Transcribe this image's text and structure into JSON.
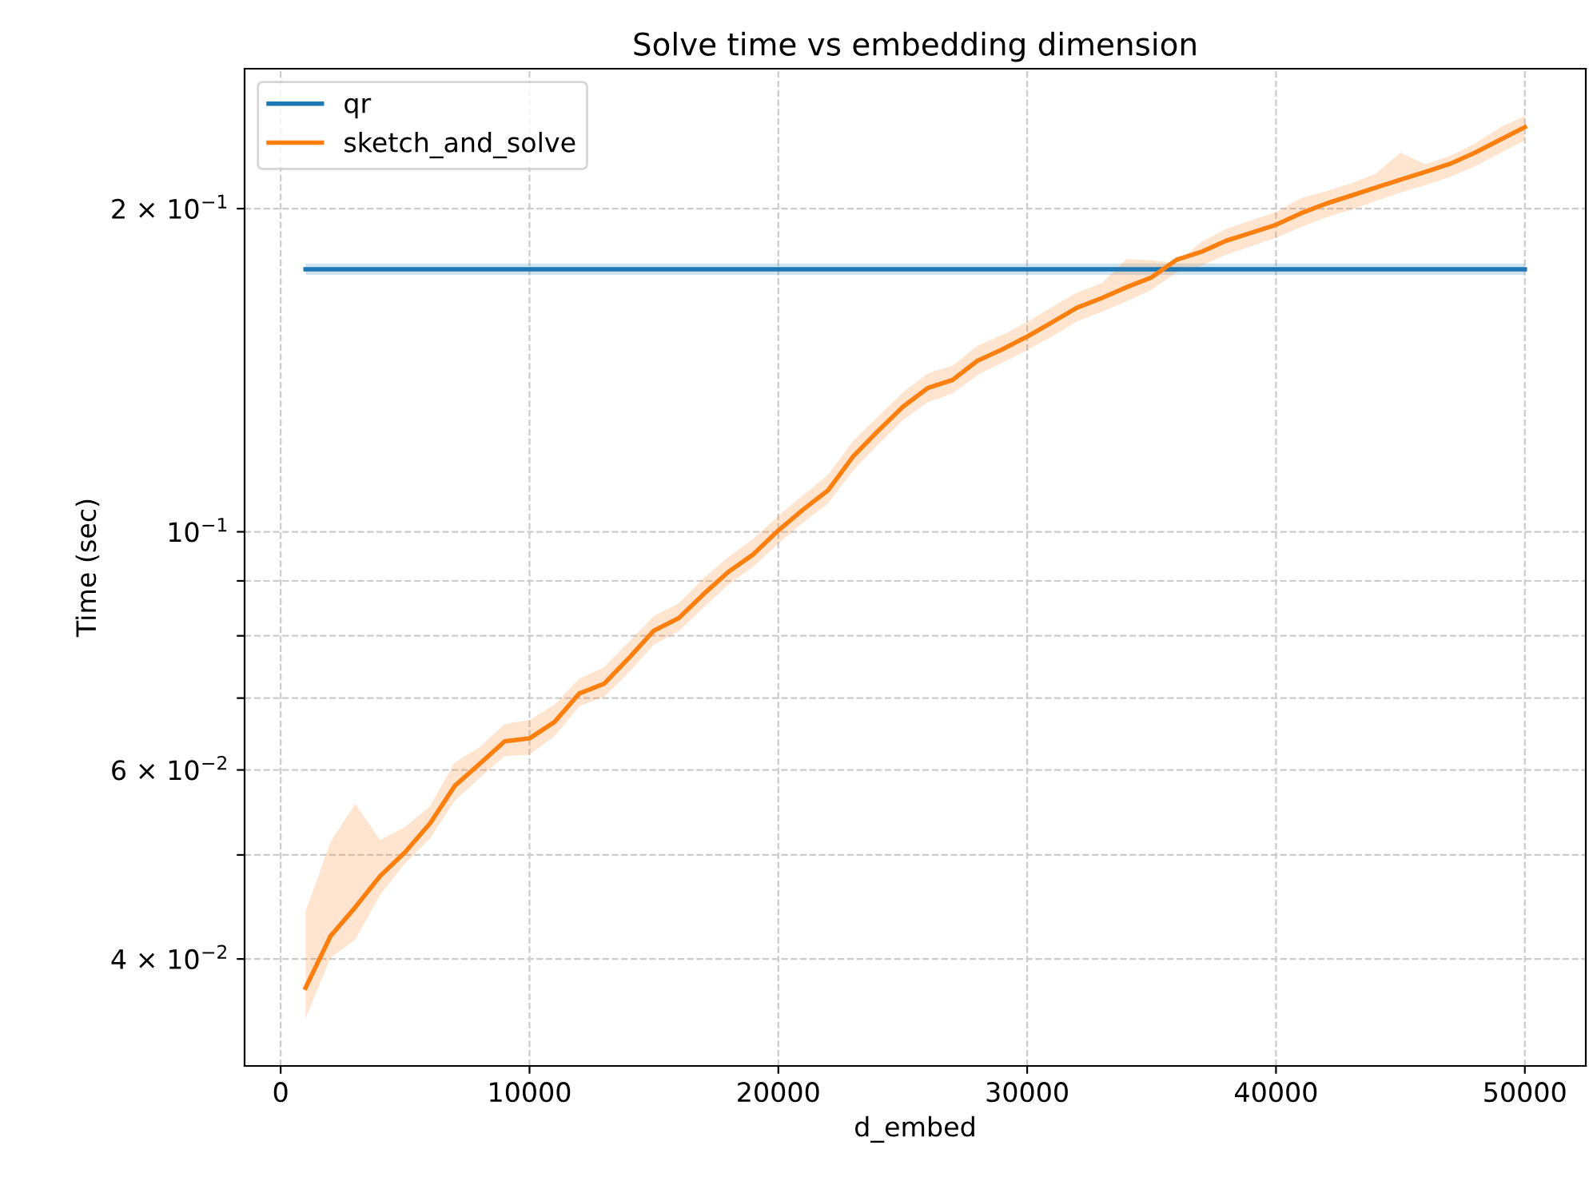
{
  "chart_data": {
    "type": "line",
    "title": "Solve time vs embedding dimension",
    "xlabel": "d_embed",
    "ylabel": "Time (sec)",
    "log": "y",
    "grid": true,
    "legend": "top left",
    "x": [
      1000,
      2000,
      3000,
      4000,
      5000,
      6000,
      7000,
      8000,
      9000,
      10000,
      11000,
      12000,
      13000,
      14000,
      15000,
      16000,
      17000,
      18000,
      19000,
      20000,
      21000,
      22000,
      23000,
      24000,
      25000,
      26000,
      27000,
      28000,
      29000,
      30000,
      31000,
      32000,
      33000,
      34000,
      35000,
      36000,
      37000,
      38000,
      39000,
      40000,
      41000,
      42000,
      43000,
      44000,
      45000,
      46000,
      47000,
      48000,
      49000,
      50000
    ],
    "xlim": [
      -1450,
      52450
    ],
    "xticks": [
      0,
      10000,
      20000,
      30000,
      40000,
      50000
    ],
    "ylim": [
      0.0318,
      0.27
    ],
    "yticks": [
      {
        "value": 0.04,
        "label": "4 × 10$^{−2}$"
      },
      {
        "value": 0.05,
        "label": null
      },
      {
        "value": 0.06,
        "label": "6 × 10$^{−2}$"
      },
      {
        "value": 0.07,
        "label": null
      },
      {
        "value": 0.08,
        "label": null
      },
      {
        "value": 0.09,
        "label": null
      },
      {
        "value": 0.1,
        "label": "10$^{−1}$"
      },
      {
        "value": 0.2,
        "label": "2 × 10$^{−1}$"
      }
    ],
    "series": [
      {
        "name": "qr",
        "color": "#1f77b4",
        "values": [
          0.1756,
          0.1756,
          0.1756,
          0.1756,
          0.1756,
          0.1756,
          0.1756,
          0.1756,
          0.1756,
          0.1756,
          0.1756,
          0.1756,
          0.1756,
          0.1756,
          0.1756,
          0.1756,
          0.1756,
          0.1756,
          0.1756,
          0.1756,
          0.1756,
          0.1756,
          0.1756,
          0.1756,
          0.1756,
          0.1756,
          0.1756,
          0.1756,
          0.1756,
          0.1756,
          0.1756,
          0.1756,
          0.1756,
          0.1756,
          0.1756,
          0.1756,
          0.1756,
          0.1756,
          0.1756,
          0.1756,
          0.1756,
          0.1756,
          0.1756,
          0.1756,
          0.1756,
          0.1756,
          0.1756,
          0.1756,
          0.1756,
          0.1756
        ],
        "lower": [
          0.1735,
          0.1735,
          0.1735,
          0.1735,
          0.1735,
          0.1735,
          0.1735,
          0.1735,
          0.1735,
          0.1735,
          0.1735,
          0.1735,
          0.1735,
          0.1735,
          0.1735,
          0.1735,
          0.1735,
          0.1735,
          0.1735,
          0.1735,
          0.1735,
          0.1735,
          0.1735,
          0.1735,
          0.1735,
          0.1735,
          0.1735,
          0.1735,
          0.1735,
          0.1735,
          0.1735,
          0.1735,
          0.1735,
          0.1735,
          0.1735,
          0.1735,
          0.1735,
          0.1735,
          0.1735,
          0.1735,
          0.1735,
          0.1735,
          0.1735,
          0.1735,
          0.1735,
          0.1735,
          0.1735,
          0.1735,
          0.1735,
          0.1735
        ],
        "upper": [
          0.1778,
          0.1778,
          0.1778,
          0.1778,
          0.1778,
          0.1778,
          0.1778,
          0.1778,
          0.1778,
          0.1778,
          0.1778,
          0.1778,
          0.1778,
          0.1778,
          0.1778,
          0.1778,
          0.1778,
          0.1778,
          0.1778,
          0.1778,
          0.1778,
          0.1778,
          0.1778,
          0.1778,
          0.1778,
          0.1778,
          0.1778,
          0.1778,
          0.1778,
          0.1778,
          0.1778,
          0.1778,
          0.1778,
          0.1778,
          0.1778,
          0.1778,
          0.1778,
          0.1778,
          0.1778,
          0.1778,
          0.1778,
          0.1778,
          0.1778,
          0.1778,
          0.1778,
          0.1778,
          0.1778,
          0.1778,
          0.1778,
          0.1778
        ]
      },
      {
        "name": "sketch_and_solve",
        "color": "#ff7f0e",
        "values": [
          0.0376,
          0.042,
          0.0447,
          0.0478,
          0.0503,
          0.0535,
          0.058,
          0.0608,
          0.0638,
          0.0642,
          0.0665,
          0.0707,
          0.0722,
          0.0763,
          0.0809,
          0.0831,
          0.0875,
          0.0918,
          0.0953,
          0.1003,
          0.1049,
          0.1093,
          0.1175,
          0.1241,
          0.1307,
          0.1361,
          0.1385,
          0.1443,
          0.1479,
          0.152,
          0.1567,
          0.1617,
          0.1651,
          0.169,
          0.1726,
          0.1792,
          0.1823,
          0.1867,
          0.1899,
          0.1932,
          0.198,
          0.2021,
          0.2056,
          0.2092,
          0.2128,
          0.2164,
          0.2202,
          0.2255,
          0.2318,
          0.2382
        ],
        "lower": [
          0.0352,
          0.0401,
          0.0417,
          0.0459,
          0.0491,
          0.0518,
          0.0562,
          0.059,
          0.0618,
          0.062,
          0.0645,
          0.0688,
          0.0702,
          0.074,
          0.0785,
          0.0808,
          0.085,
          0.0893,
          0.0928,
          0.0975,
          0.102,
          0.1063,
          0.114,
          0.1205,
          0.127,
          0.132,
          0.1345,
          0.14,
          0.1437,
          0.1476,
          0.152,
          0.157,
          0.1603,
          0.164,
          0.168,
          0.1745,
          0.177,
          0.1812,
          0.1845,
          0.1878,
          0.1922,
          0.1962,
          0.1995,
          0.2032,
          0.207,
          0.2103,
          0.214,
          0.219,
          0.2252,
          0.2315
        ],
        "upper": [
          0.0443,
          0.0514,
          0.0558,
          0.0516,
          0.0531,
          0.0555,
          0.061,
          0.063,
          0.0662,
          0.0668,
          0.069,
          0.073,
          0.0748,
          0.079,
          0.0835,
          0.0858,
          0.0905,
          0.0948,
          0.0985,
          0.1035,
          0.1082,
          0.113,
          0.1215,
          0.128,
          0.1348,
          0.1405,
          0.1428,
          0.149,
          0.1525,
          0.1568,
          0.162,
          0.167,
          0.1705,
          0.1795,
          0.179,
          0.178,
          0.1862,
          0.1915,
          0.195,
          0.1985,
          0.2045,
          0.2075,
          0.211,
          0.2155,
          0.2255,
          0.22,
          0.224,
          0.23,
          0.238,
          0.244
        ]
      }
    ]
  }
}
